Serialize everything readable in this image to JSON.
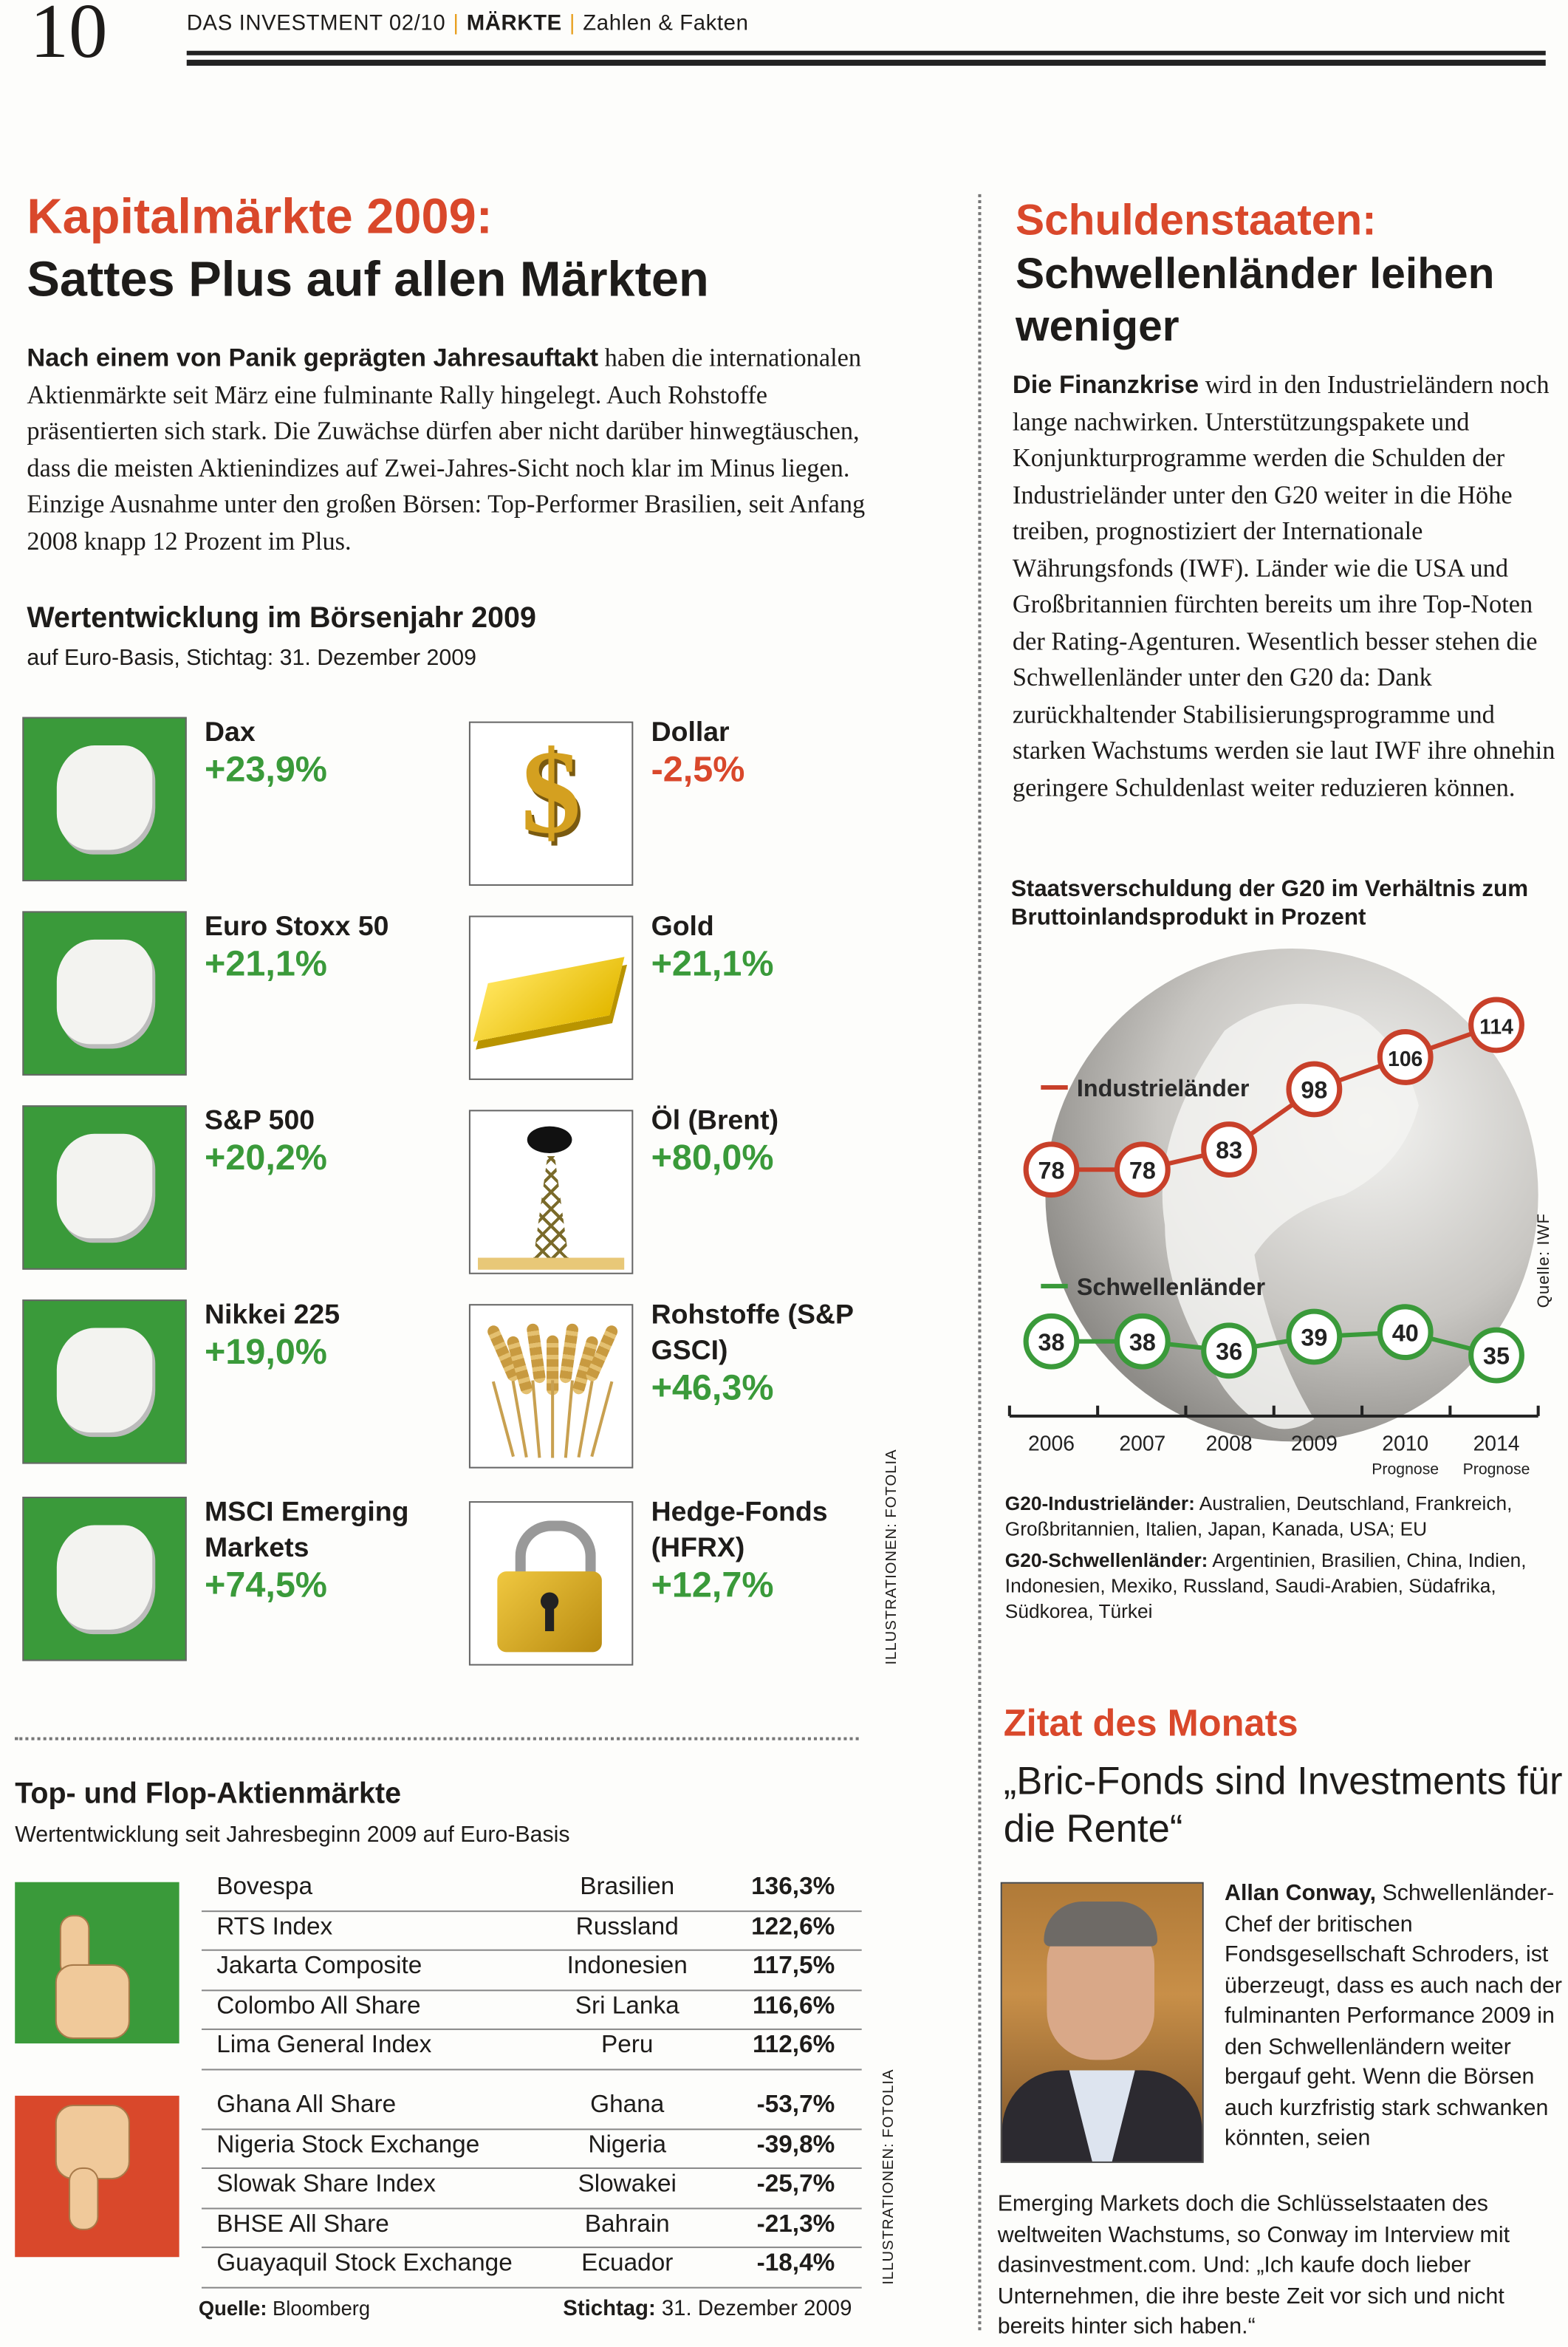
{
  "header": {
    "page_number": "10",
    "magazine": "DAS INVESTMENT 02/10",
    "section": "MÄRKTE",
    "subsection": "Zahlen & Fakten"
  },
  "left": {
    "title_red": "Kapitalmärkte 2009:",
    "title_black": "Sattes Plus auf allen Märkten",
    "intro_bold": "Nach einem von Panik geprägten Jahresauftakt",
    "intro_rest": " haben die internationalen Aktienmärkte seit März eine fulminante Rally hingelegt. Auch Rohstoffe präsentierten sich stark. Die Zuwächse dürfen aber nicht darüber hinwegtäuschen, dass die meisten Aktienindizes auf Zwei-Jahres-Sicht noch klar im Minus liegen. Einzige Ausnahme unter den großen Börsen: Top-Performer Brasilien, seit Anfang 2008 knapp 12 Prozent im Plus.",
    "perf_title": "Wertentwicklung im Börsenjahr 2009",
    "perf_subtitle": "auf Euro-Basis, Stichtag: 31. Dezember 2009",
    "tiles": [
      {
        "name": "Dax",
        "value": "+23,9%",
        "icon": "germany-map-icon",
        "positive": true
      },
      {
        "name": "Dollar",
        "value": "-2,5%",
        "icon": "dollar-sign-icon",
        "positive": false
      },
      {
        "name": "Euro Stoxx 50",
        "value": "+21,1%",
        "icon": "europe-map-icon",
        "positive": true
      },
      {
        "name": "Gold",
        "value": "+21,1%",
        "icon": "gold-bar-icon",
        "positive": true
      },
      {
        "name": "S&P 500",
        "value": "+20,2%",
        "icon": "usa-map-icon",
        "positive": true
      },
      {
        "name": "Öl (Brent)",
        "value": "+80,0%",
        "icon": "oil-rig-icon",
        "positive": true
      },
      {
        "name": "Nikkei 225",
        "value": "+19,0%",
        "icon": "japan-map-icon",
        "positive": true
      },
      {
        "name": "Rohstoffe (S&P GSCI)",
        "value": "+46,3%",
        "icon": "wheat-icon",
        "positive": true
      },
      {
        "name": "MSCI Emerging Markets",
        "value": "+74,5%",
        "icon": "china-map-icon",
        "positive": true
      },
      {
        "name": "Hedge-Fonds (HFRX)",
        "value": "+12,7%",
        "icon": "padlock-icon",
        "positive": true
      }
    ],
    "credit1": "ILLUSTRATIONEN: FOTOLIA",
    "topflop_title": "Top- und Flop-Aktienmärkte",
    "topflop_subtitle": "Wertentwicklung seit Jahresbeginn 2009 auf Euro-Basis",
    "top": [
      [
        "Bovespa",
        "Brasilien",
        "136,3%"
      ],
      [
        "RTS Index",
        "Russland",
        "122,6%"
      ],
      [
        "Jakarta Composite",
        "Indonesien",
        "117,5%"
      ],
      [
        "Colombo All Share",
        "Sri Lanka",
        "116,6%"
      ],
      [
        "Lima General Index",
        "Peru",
        "112,6%"
      ]
    ],
    "flop": [
      [
        "Ghana All Share",
        "Ghana",
        "-53,7%"
      ],
      [
        "Nigeria Stock Exchange",
        "Nigeria",
        "-39,8%"
      ],
      [
        "Slowak Share Index",
        "Slowakei",
        "-25,7%"
      ],
      [
        "BHSE All Share",
        "Bahrain",
        "-21,3%"
      ],
      [
        "Guayaquil Stock Exchange",
        "Ecuador",
        "-18,4%"
      ]
    ],
    "source_label": "Quelle:",
    "source": " Bloomberg",
    "date_label": "Stichtag:",
    "date": " 31. Dezember 2009",
    "credit2": "ILLUSTRATIONEN: FOTOLIA"
  },
  "right": {
    "title_red": "Schuldenstaaten:",
    "title_black": "Schwellenländer leihen weniger",
    "body_bold": "Die Finanzkrise",
    "body_rest": " wird in den Industrieländern noch lange nachwirken. Unterstützungspakete und Konjunkturprogramme werden die Schulden der Industrieländer unter den G20 weiter in die Höhe treiben, prognostiziert der Internationale Währungsfonds (IWF). Länder wie die USA und Großbritannien fürchten bereits um ihre Top-Noten der Rating-Agenturen. Wesentlich besser stehen die Schwellenländer unter den G20 da: Dank zurückhaltender Stabilisierungsprogramme und starken Wachstums werden sie laut IWF ihre ohnehin geringere Schuldenlast weiter reduzieren können.",
    "note1_bold": "G20-Industrieländer:",
    "note1": " Australien, Deutschland, Frankreich, Großbritannien, Italien, Japan, Kanada, USA; EU",
    "note2_bold": "G20-Schwellenländer:",
    "note2": " Argentinien, Brasilien, China, Indien, Indonesien, Mexiko, Russland, Saudi-Arabien, Südafrika, Südkorea, Türkei",
    "quote_heading": "Zitat des Monats",
    "quote": "„Bric-Fonds sind Investments für die Rente“",
    "quote_name": "Allan Conway,",
    "quote_text_side": " Schwellenländer-Chef der britischen Fondsgesellschaft Schroders, ist überzeugt, dass es auch nach der fulminanten Performance 2009 in den Schwellenländern weiter bergauf geht. Wenn die Börsen auch kurzfristig stark schwanken könnten, seien",
    "quote_text_bottom": "Emerging Markets doch die Schlüsselstaaten des weltweiten Wachstums, so Conway im Interview mit dasinvestment.com. Und: „Ich kaufe doch lieber Unternehmen, die ihre beste Zeit vor sich und nicht bereits hinter sich haben.“"
  },
  "chart_data": {
    "type": "line",
    "title": "Staatsverschuldung der G20 im Verhältnis zum Bruttoinlandsprodukt in Prozent",
    "categories": [
      "2006",
      "2007",
      "2008",
      "2009",
      "2010",
      "2014"
    ],
    "category_notes": [
      "",
      "",
      "",
      "",
      "Prognose",
      "Prognose"
    ],
    "series": [
      {
        "name": "Industrieländer",
        "values": [
          78,
          78,
          83,
          98,
          106,
          114
        ],
        "color": "#c8402a"
      },
      {
        "name": "Schwellenländer",
        "values": [
          38,
          38,
          36,
          39,
          40,
          35
        ],
        "color": "#3a9a3a"
      }
    ],
    "source": "Quelle: IWF",
    "background": "globe"
  },
  "colors": {
    "accent_red": "#d9482b",
    "positive_green": "#3a9a3a",
    "tile_green": "#3a9a3a",
    "flop_red": "#d9482b"
  }
}
